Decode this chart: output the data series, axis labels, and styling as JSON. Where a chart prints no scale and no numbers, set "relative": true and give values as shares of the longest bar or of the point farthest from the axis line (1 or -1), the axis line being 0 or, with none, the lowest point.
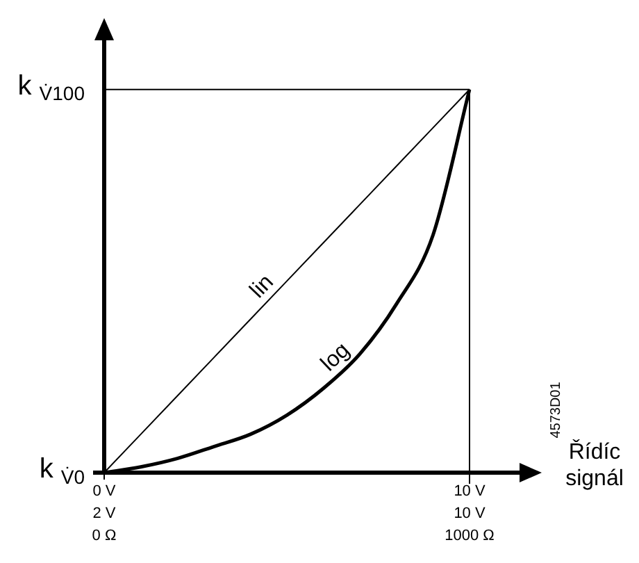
{
  "chart_data": {
    "type": "line",
    "xlabel": "Řídíc signál",
    "relative": true,
    "categories": [
      "0 V\n2 V\n0 Ω",
      null,
      null,
      null,
      null,
      null,
      null,
      null,
      null,
      null,
      "10 V\n10 V\n1000 Ω"
    ],
    "series": [
      {
        "name": "lin",
        "color": "#000000",
        "values": [
          0,
          0.1,
          0.2,
          0.3,
          0.4,
          0.5,
          0.6,
          0.7,
          0.8,
          0.9,
          1
        ]
      },
      {
        "name": "log",
        "color": "#000000",
        "values": [
          0,
          0.015,
          0.037,
          0.068,
          0.1,
          0.15,
          0.22,
          0.31,
          0.44,
          0.62,
          1
        ]
      }
    ],
    "ref_lines": [
      {
        "axis": "y",
        "value": 1
      },
      {
        "axis": "x",
        "value": "10 V\n10 V\n1000 Ω"
      }
    ],
    "annotations": [
      "k $_{V̇0}$",
      "k $_{V̇100}$",
      "4573D01"
    ],
    "marker": "none",
    "line_style": "solid",
    "legend": false
  }
}
